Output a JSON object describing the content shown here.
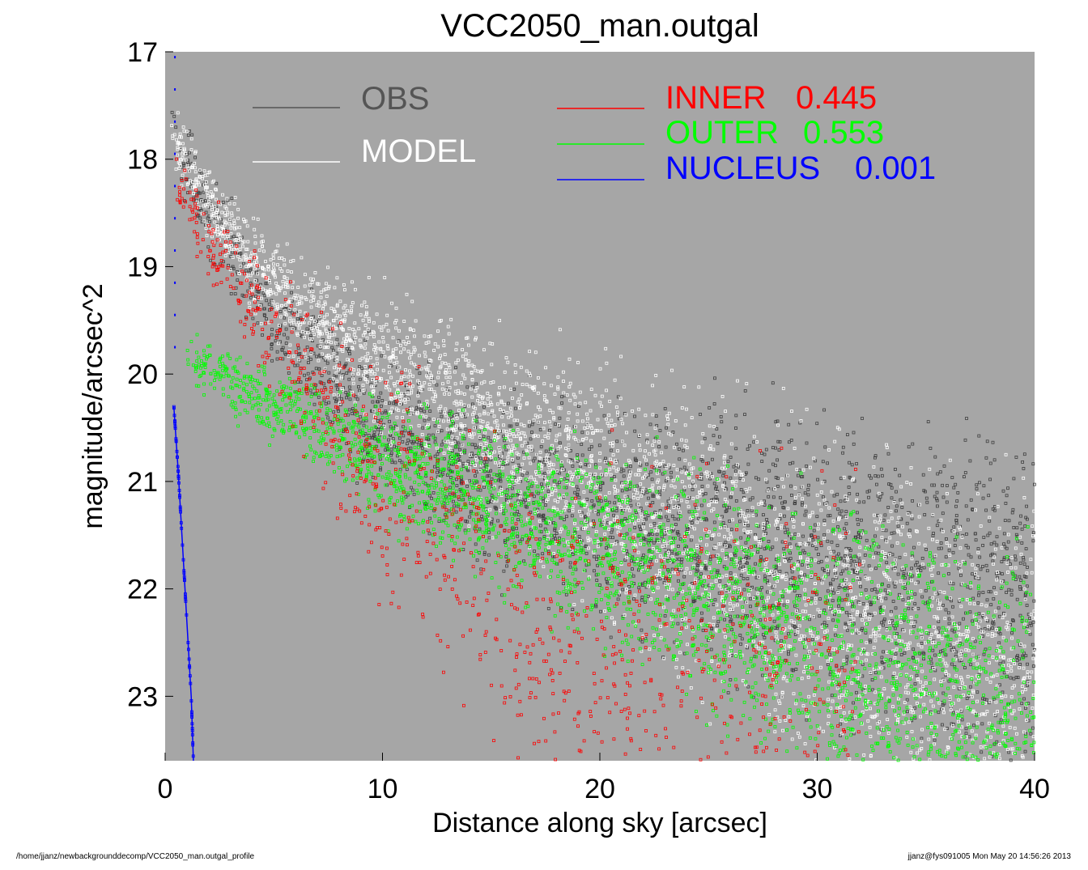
{
  "chart_data": {
    "type": "scatter",
    "title": "VCC2050_man.outgal",
    "xlabel": "Distance along sky [arcsec]",
    "ylabel": "magnitude/arcsec^2",
    "xlim": [
      0,
      40
    ],
    "ylim": [
      23.6,
      17
    ],
    "y_inverted": true,
    "x_ticks": [
      "0",
      "10",
      "20",
      "30",
      "40"
    ],
    "y_ticks": [
      "17",
      "18",
      "19",
      "20",
      "21",
      "22",
      "23"
    ],
    "background": "#a6a6a6",
    "legend_left": [
      {
        "name": "OBS",
        "color": "#555555"
      },
      {
        "name": "MODEL",
        "color": "#ffffff"
      }
    ],
    "legend_right": [
      {
        "name": "INNER",
        "value": "0.445",
        "color": "#ff0000"
      },
      {
        "name": "OUTER",
        "value": "0.553",
        "color": "#00ff00"
      },
      {
        "name": "NUCLEUS",
        "value": "0.001",
        "color": "#0000ff"
      }
    ],
    "series": [
      {
        "name": "OBS",
        "color": "#404040",
        "x": [
          0.3,
          2,
          5,
          10,
          15,
          20,
          25,
          30,
          35,
          40
        ],
        "y": [
          17.8,
          18.5,
          19.5,
          20.5,
          21.0,
          21.3,
          21.5,
          21.8,
          22.0,
          22.2
        ]
      },
      {
        "name": "MODEL",
        "color": "#ffffff",
        "x": [
          0.3,
          2,
          5,
          10,
          15,
          20,
          25,
          30,
          35,
          40
        ],
        "y": [
          17.8,
          18.4,
          19.2,
          19.9,
          20.5,
          21.0,
          21.6,
          22.2,
          22.7,
          23.1
        ]
      },
      {
        "name": "INNER",
        "color": "#ff0000",
        "x": [
          0.5,
          2,
          5,
          10,
          15,
          20,
          25,
          30,
          32
        ],
        "y": [
          18.2,
          18.8,
          19.7,
          21.0,
          22.0,
          22.6,
          23.0,
          23.4,
          23.6
        ]
      },
      {
        "name": "OUTER",
        "color": "#00ff00",
        "x": [
          1,
          5,
          10,
          15,
          20,
          25,
          30,
          35,
          40
        ],
        "y": [
          19.85,
          20.3,
          20.8,
          21.2,
          21.6,
          22.1,
          22.6,
          23.0,
          23.4
        ]
      },
      {
        "name": "NUCLEUS",
        "color": "#0000ff",
        "x": [
          0.4,
          0.6,
          0.8,
          1.0,
          1.2,
          1.3
        ],
        "y": [
          20.3,
          20.9,
          21.6,
          22.3,
          23.0,
          23.6
        ]
      }
    ]
  },
  "footer": {
    "left": "/home/jjanz/newbackgrounddecomp/VCC2050_man.outgal_profile",
    "right": "jjanz@fys091005  Mon May 20 14:56:26 2013"
  }
}
